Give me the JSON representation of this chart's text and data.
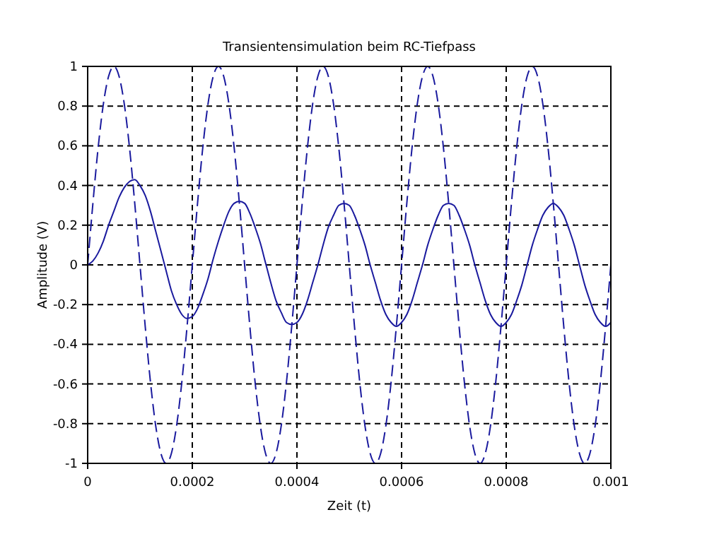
{
  "chart_data": {
    "type": "line",
    "title": "Transientensimulation beim RC-Tiefpass",
    "xlabel": "Zeit (t)",
    "ylabel": "Amplitude (V)",
    "x": [
      0,
      1e-05,
      2e-05,
      3e-05,
      4e-05,
      5e-05,
      6e-05,
      7e-05,
      8e-05,
      9e-05,
      0.0001,
      0.00011,
      0.00012,
      0.00013,
      0.00014,
      0.00015,
      0.00016,
      0.00017,
      0.00018,
      0.00019,
      0.0002,
      0.00021,
      0.00022,
      0.00023,
      0.00024,
      0.00025,
      0.00026,
      0.00027,
      0.00028,
      0.00029,
      0.0003,
      0.00031,
      0.00032,
      0.00033,
      0.00034,
      0.00035,
      0.00036,
      0.00037,
      0.00038,
      0.00039,
      0.0004,
      0.00041,
      0.00042,
      0.00043,
      0.00044,
      0.00045,
      0.00046,
      0.00047,
      0.00048,
      0.00049,
      0.0005,
      0.00051,
      0.00052,
      0.00053,
      0.00054,
      0.00055,
      0.00056,
      0.00057,
      0.00058,
      0.00059,
      0.0006,
      0.00061,
      0.00062,
      0.00063,
      0.00064,
      0.00065,
      0.00066,
      0.00067,
      0.00068,
      0.00069,
      0.0007,
      0.00071,
      0.00072,
      0.00073,
      0.00074,
      0.00075,
      0.00076,
      0.00077,
      0.00078,
      0.00079,
      0.0008,
      0.00081,
      0.00082,
      0.00083,
      0.00084,
      0.00085,
      0.00086,
      0.00087,
      0.00088,
      0.00089,
      0.0009,
      0.00091,
      0.00092,
      0.00093,
      0.00094,
      0.00095,
      0.00096,
      0.00097,
      0.00098,
      0.00099,
      0.001
    ],
    "series": [
      {
        "color": "#1a1a9e",
        "line_style": "dashed",
        "values": [
          0,
          0.31,
          0.59,
          0.81,
          0.95,
          1,
          0.95,
          0.81,
          0.59,
          0.31,
          0,
          -0.31,
          -0.59,
          -0.81,
          -0.95,
          -1,
          -0.95,
          -0.81,
          -0.59,
          -0.31,
          0,
          0.31,
          0.59,
          0.81,
          0.95,
          1,
          0.95,
          0.81,
          0.59,
          0.31,
          0,
          -0.31,
          -0.59,
          -0.81,
          -0.95,
          -1,
          -0.95,
          -0.81,
          -0.59,
          -0.31,
          0,
          0.31,
          0.59,
          0.81,
          0.95,
          1,
          0.95,
          0.81,
          0.59,
          0.31,
          0,
          -0.31,
          -0.59,
          -0.81,
          -0.95,
          -1,
          -0.95,
          -0.81,
          -0.59,
          -0.31,
          0,
          0.31,
          0.59,
          0.81,
          0.95,
          1,
          0.95,
          0.81,
          0.59,
          0.31,
          0,
          -0.31,
          -0.59,
          -0.81,
          -0.95,
          -1,
          -0.95,
          -0.81,
          -0.59,
          -0.31,
          0,
          0.31,
          0.59,
          0.81,
          0.95,
          1,
          0.95,
          0.81,
          0.59,
          0.31,
          0,
          -0.31,
          -0.59,
          -0.81,
          -0.95,
          -1,
          -0.95,
          -0.81,
          -0.59,
          -0.31,
          0
        ]
      },
      {
        "color": "#1a1a9e",
        "line_style": "solid",
        "values": [
          0,
          0.02,
          0.06,
          0.12,
          0.2,
          0.27,
          0.34,
          0.39,
          0.42,
          0.43,
          0.4,
          0.35,
          0.27,
          0.17,
          0.07,
          -0.03,
          -0.13,
          -0.2,
          -0.25,
          -0.27,
          -0.26,
          -0.22,
          -0.15,
          -0.07,
          0.03,
          0.12,
          0.2,
          0.27,
          0.31,
          0.32,
          0.31,
          0.26,
          0.19,
          0.11,
          0.01,
          -0.09,
          -0.18,
          -0.24,
          -0.29,
          -0.3,
          -0.29,
          -0.25,
          -0.18,
          -0.09,
          0,
          0.1,
          0.19,
          0.25,
          0.3,
          0.31,
          0.3,
          0.25,
          0.18,
          0.1,
          0,
          -0.09,
          -0.18,
          -0.25,
          -0.29,
          -0.31,
          -0.29,
          -0.25,
          -0.18,
          -0.09,
          0,
          0.1,
          0.18,
          0.25,
          0.3,
          0.31,
          0.3,
          0.25,
          0.18,
          0.1,
          0,
          -0.09,
          -0.18,
          -0.25,
          -0.29,
          -0.31,
          -0.29,
          -0.25,
          -0.18,
          -0.1,
          0,
          0.1,
          0.18,
          0.25,
          0.29,
          0.31,
          0.29,
          0.25,
          0.18,
          0.1,
          0,
          -0.1,
          -0.18,
          -0.25,
          -0.29,
          -0.31,
          -0.29
        ]
      }
    ],
    "xlim": [
      0,
      0.001
    ],
    "xticks": [
      0,
      0.0002,
      0.0004,
      0.0006,
      0.0008,
      0.001
    ],
    "ylim": [
      -1,
      1
    ],
    "yticks": [
      -1,
      -0.8,
      -0.6,
      -0.4,
      -0.2,
      0,
      0.2,
      0.4,
      0.6,
      0.8,
      1
    ],
    "grid": true
  }
}
